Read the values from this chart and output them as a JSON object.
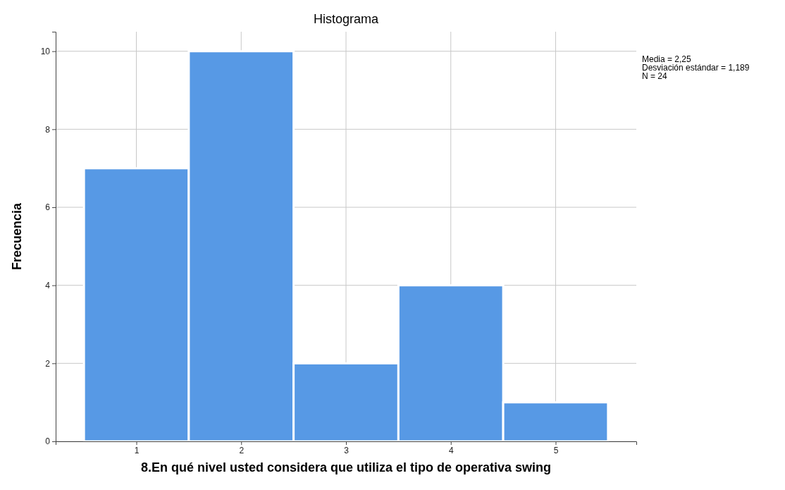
{
  "chart_data": {
    "type": "histogram",
    "title": "Histograma",
    "xlabel": "8.En qué nivel usted considera que utiliza el tipo de operativa swing",
    "ylabel": "Frecuencia",
    "bins": [
      0.5,
      1.5,
      2.5,
      3.5,
      4.5,
      5.5
    ],
    "values": [
      7,
      10,
      2,
      4,
      1
    ],
    "color": "#5799e5",
    "xlim": [
      0.23,
      5.77
    ],
    "ylim": [
      0,
      10.5
    ],
    "xticks": [
      1,
      2,
      3,
      4,
      5
    ],
    "yticks": [
      0,
      2,
      4,
      6,
      8,
      10
    ],
    "grid": true,
    "annotations": [
      "Media = 2,25",
      "Desviación estándar = 1,189",
      "N = 24"
    ]
  }
}
